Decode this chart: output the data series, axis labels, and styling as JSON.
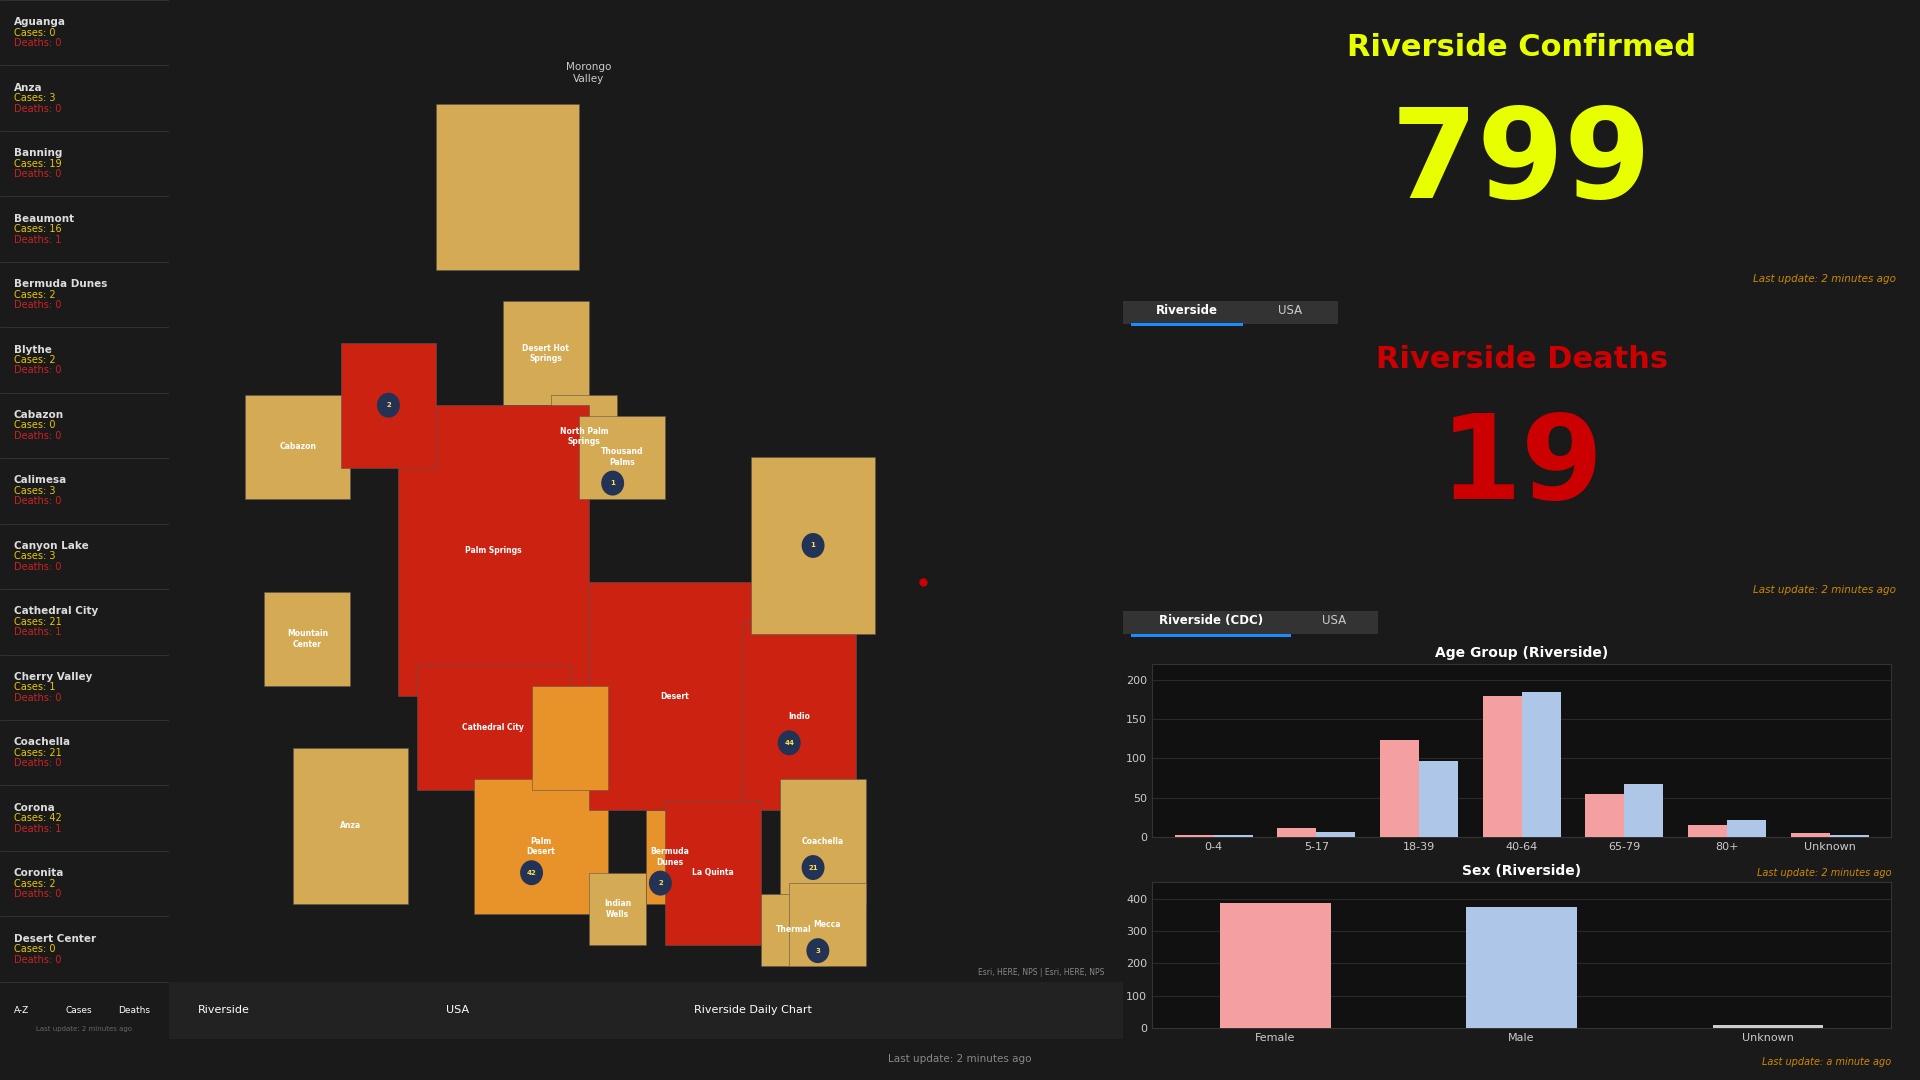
{
  "bg_color": "#1a1a1a",
  "panel_bg": "#0a0a0a",
  "sidebar_bg": "#2a2a2a",
  "map_bg": "#3d3d3d",
  "title_confirmed": "Riverside Confirmed",
  "confirmed_value": "799",
  "confirmed_color": "#e8ff00",
  "title_deaths": "Riverside Deaths",
  "deaths_value": "19",
  "deaths_color": "#cc0000",
  "last_update": "Last update: 2 minutes ago",
  "last_update_color": "#cc8800",
  "last_update_sex": "Last update: a minute ago",
  "tab_riverside": "Riverside",
  "tab_usa": "USA",
  "tab_cdc": "Riverside (CDC)",
  "age_title": "Age Group (Riverside)",
  "age_groups": [
    "0-4",
    "5-17",
    "18-39",
    "40-64",
    "65-79",
    "80+",
    "Unknown"
  ],
  "age_male": [
    2,
    7,
    97,
    185,
    68,
    22,
    3
  ],
  "age_female": [
    3,
    12,
    123,
    180,
    55,
    15,
    5
  ],
  "age_male_color": "#aec6e8",
  "age_female_color": "#f4a0a0",
  "age_ylim": [
    0,
    220
  ],
  "age_yticks": [
    0,
    50,
    100,
    150,
    200
  ],
  "sex_title": "Sex (Riverside)",
  "sex_categories": [
    "Female",
    "Male",
    "Unknown"
  ],
  "sex_values": [
    385,
    375,
    10
  ],
  "sex_colors": [
    "#f4a0a0",
    "#aec6e8",
    "#cccccc"
  ],
  "sex_ylim": [
    0,
    450
  ],
  "sex_yticks": [
    0,
    100,
    200,
    300,
    400
  ],
  "sidebar_items": [
    {
      "name": "Aguanga",
      "cases": 0,
      "deaths": 0
    },
    {
      "name": "Anza",
      "cases": 3,
      "deaths": 0
    },
    {
      "name": "Banning",
      "cases": 19,
      "deaths": 0
    },
    {
      "name": "Beaumont",
      "cases": 16,
      "deaths": 1
    },
    {
      "name": "Bermuda Dunes",
      "cases": 2,
      "deaths": 0
    },
    {
      "name": "Blythe",
      "cases": 2,
      "deaths": 0
    },
    {
      "name": "Cabazon",
      "cases": 0,
      "deaths": 0
    },
    {
      "name": "Calimesa",
      "cases": 3,
      "deaths": 0
    },
    {
      "name": "Canyon Lake",
      "cases": 3,
      "deaths": 0
    },
    {
      "name": "Cathedral City",
      "cases": 21,
      "deaths": 1
    },
    {
      "name": "Cherry Valley",
      "cases": 1,
      "deaths": 0
    },
    {
      "name": "Coachella",
      "cases": 21,
      "deaths": 0
    },
    {
      "name": "Corona",
      "cases": 42,
      "deaths": 1
    },
    {
      "name": "Coronita",
      "cases": 2,
      "deaths": 0
    },
    {
      "name": "Desert Center",
      "cases": 0,
      "deaths": 0
    }
  ],
  "bottom_tabs": [
    "A-Z",
    "Cases",
    "Deaths"
  ],
  "bottom_map_tabs": [
    "Riverside",
    "USA",
    "Riverside Daily Chart"
  ],
  "bottom_update": "Last update: 2 minutes ago",
  "cases_color": "#e8c800",
  "name_color": "#dddddd",
  "divider_color": "#444444",
  "tab_active_color": "#1a8cff",
  "tab_text_color": "#cccccc",
  "chart_bg": "#111111",
  "chart_border": "#333333",
  "grid_color": "#2a2a2a"
}
